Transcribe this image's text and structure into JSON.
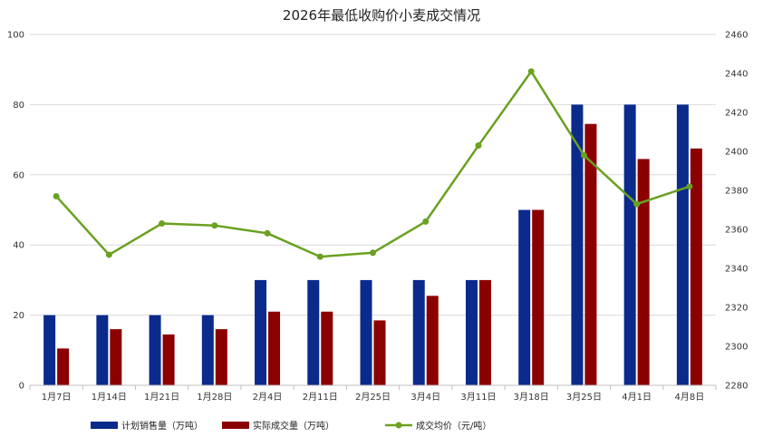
{
  "chart_data": {
    "type": "bar",
    "title": "2026年最低收购价小麦成交情况",
    "categories": [
      "1月7日",
      "1月14日",
      "1月21日",
      "1月28日",
      "2月4日",
      "2月11日",
      "2月25日",
      "3月4日",
      "3月11日",
      "3月18日",
      "3月25日",
      "4月1日",
      "4月8日"
    ],
    "series": [
      {
        "name": "计划销售量（万吨）",
        "type": "bar",
        "axis": "left",
        "color": "#0a2a8c",
        "values": [
          20,
          20,
          20,
          20,
          30,
          30,
          30,
          30,
          30,
          50,
          80,
          80,
          80
        ]
      },
      {
        "name": "实际成交量（万吨）",
        "type": "bar",
        "axis": "left",
        "color": "#8b0000",
        "values": [
          10.5,
          16,
          14.5,
          16,
          21,
          21,
          18.5,
          25.5,
          30,
          50,
          74.5,
          64.5,
          67.5
        ]
      },
      {
        "name": "成交均价（元/吨）",
        "type": "line",
        "axis": "right",
        "color": "#6aa121",
        "values": [
          2377,
          2347,
          2363,
          2362,
          2358,
          2346,
          2348,
          2364,
          2403,
          2441,
          2398,
          2373,
          2382
        ]
      }
    ],
    "y_left": {
      "range": [
        0,
        100
      ],
      "ticks": [
        "0",
        "20",
        "40",
        "60",
        "80",
        "100"
      ]
    },
    "y_right": {
      "range": [
        2280,
        2460
      ],
      "ticks": [
        "2280",
        "2300",
        "2320",
        "2340",
        "2360",
        "2380",
        "2400",
        "2420",
        "2440",
        "2460"
      ]
    },
    "grid": true,
    "legend_position": "bottom"
  }
}
